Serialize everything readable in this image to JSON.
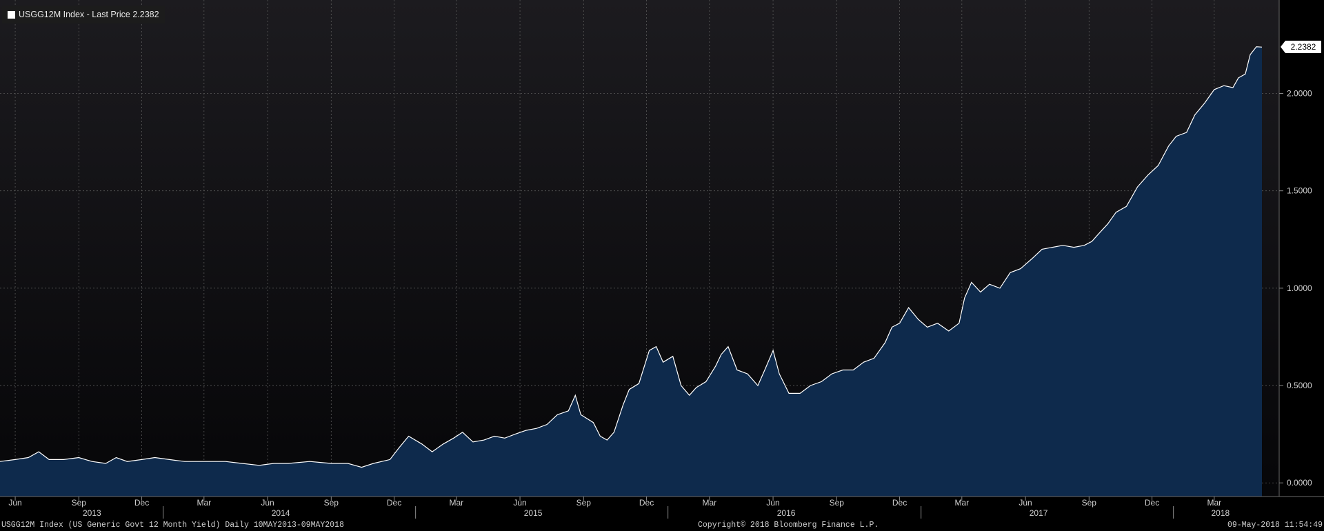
{
  "legend": {
    "label": "USGG12M Index - Last Price 2.2382"
  },
  "last_price_tag": "2.2382",
  "footer": {
    "left": "USGG12M Index (US Generic Govt 12 Month Yield)  Daily 10MAY2013-09MAY2018",
    "center": "Copyright© 2018 Bloomberg Finance L.P.",
    "right": "09-May-2018 11:54:49"
  },
  "colors": {
    "background": "#000000",
    "plot_background_top": "#1c1c20",
    "plot_background_bottom": "#050507",
    "area_fill": "#0e2a4c",
    "line": "#ffffff",
    "grid": "#5a5a5a"
  },
  "chart_data": {
    "type": "area",
    "title": "USGG12M Index - Last Price 2.2382",
    "series_name": "USGG12M Index",
    "xlabel": "",
    "ylabel": "",
    "ylim": [
      -0.07,
      2.48
    ],
    "y_ticks": [
      "0.0000",
      "0.5000",
      "1.0000",
      "1.5000",
      "2.0000"
    ],
    "x_month_ticks": [
      "Jun",
      "Sep",
      "Dec",
      "Mar",
      "Jun",
      "Sep",
      "Dec",
      "Mar",
      "Jun",
      "Sep",
      "Dec",
      "Mar",
      "Jun",
      "Sep",
      "Dec",
      "Mar",
      "Jun",
      "Sep",
      "Dec",
      "Mar"
    ],
    "x_years": [
      "2013",
      "2014",
      "2015",
      "2016",
      "2017",
      "2018"
    ],
    "grid": true,
    "legend_position": "top-left",
    "last_value": 2.2382,
    "points": [
      [
        "2013-05-10",
        0.11
      ],
      [
        "2013-06-01",
        0.12
      ],
      [
        "2013-06-20",
        0.13
      ],
      [
        "2013-07-05",
        0.16
      ],
      [
        "2013-07-20",
        0.12
      ],
      [
        "2013-08-10",
        0.12
      ],
      [
        "2013-09-01",
        0.13
      ],
      [
        "2013-09-20",
        0.11
      ],
      [
        "2013-10-10",
        0.1
      ],
      [
        "2013-10-25",
        0.13
      ],
      [
        "2013-11-10",
        0.11
      ],
      [
        "2013-12-01",
        0.12
      ],
      [
        "2013-12-20",
        0.13
      ],
      [
        "2014-01-10",
        0.12
      ],
      [
        "2014-02-01",
        0.11
      ],
      [
        "2014-03-01",
        0.11
      ],
      [
        "2014-04-01",
        0.11
      ],
      [
        "2014-04-25",
        0.1
      ],
      [
        "2014-05-20",
        0.09
      ],
      [
        "2014-06-10",
        0.1
      ],
      [
        "2014-07-01",
        0.1
      ],
      [
        "2014-08-01",
        0.11
      ],
      [
        "2014-09-01",
        0.1
      ],
      [
        "2014-09-25",
        0.1
      ],
      [
        "2014-10-15",
        0.08
      ],
      [
        "2014-11-01",
        0.1
      ],
      [
        "2014-11-25",
        0.12
      ],
      [
        "2014-12-08",
        0.18
      ],
      [
        "2014-12-22",
        0.24
      ],
      [
        "2015-01-10",
        0.2
      ],
      [
        "2015-01-25",
        0.16
      ],
      [
        "2015-02-10",
        0.2
      ],
      [
        "2015-02-25",
        0.23
      ],
      [
        "2015-03-10",
        0.26
      ],
      [
        "2015-03-25",
        0.21
      ],
      [
        "2015-04-10",
        0.22
      ],
      [
        "2015-04-25",
        0.24
      ],
      [
        "2015-05-10",
        0.23
      ],
      [
        "2015-05-25",
        0.25
      ],
      [
        "2015-06-10",
        0.27
      ],
      [
        "2015-06-25",
        0.28
      ],
      [
        "2015-07-10",
        0.3
      ],
      [
        "2015-07-25",
        0.35
      ],
      [
        "2015-08-10",
        0.37
      ],
      [
        "2015-08-20",
        0.45
      ],
      [
        "2015-08-28",
        0.35
      ],
      [
        "2015-09-15",
        0.31
      ],
      [
        "2015-09-25",
        0.24
      ],
      [
        "2015-10-05",
        0.22
      ],
      [
        "2015-10-15",
        0.26
      ],
      [
        "2015-10-28",
        0.4
      ],
      [
        "2015-11-06",
        0.48
      ],
      [
        "2015-11-20",
        0.51
      ],
      [
        "2015-12-05",
        0.68
      ],
      [
        "2015-12-15",
        0.7
      ],
      [
        "2015-12-25",
        0.62
      ],
      [
        "2016-01-08",
        0.65
      ],
      [
        "2016-01-20",
        0.5
      ],
      [
        "2016-02-01",
        0.45
      ],
      [
        "2016-02-11",
        0.49
      ],
      [
        "2016-02-25",
        0.52
      ],
      [
        "2016-03-10",
        0.6
      ],
      [
        "2016-03-18",
        0.66
      ],
      [
        "2016-03-28",
        0.7
      ],
      [
        "2016-04-10",
        0.58
      ],
      [
        "2016-04-25",
        0.56
      ],
      [
        "2016-05-10",
        0.5
      ],
      [
        "2016-05-20",
        0.58
      ],
      [
        "2016-06-01",
        0.68
      ],
      [
        "2016-06-10",
        0.56
      ],
      [
        "2016-06-24",
        0.46
      ],
      [
        "2016-07-10",
        0.46
      ],
      [
        "2016-07-25",
        0.5
      ],
      [
        "2016-08-10",
        0.52
      ],
      [
        "2016-08-25",
        0.56
      ],
      [
        "2016-09-10",
        0.58
      ],
      [
        "2016-09-25",
        0.58
      ],
      [
        "2016-10-10",
        0.62
      ],
      [
        "2016-10-25",
        0.64
      ],
      [
        "2016-11-10",
        0.72
      ],
      [
        "2016-11-20",
        0.8
      ],
      [
        "2016-12-01",
        0.82
      ],
      [
        "2016-12-14",
        0.9
      ],
      [
        "2016-12-28",
        0.84
      ],
      [
        "2017-01-10",
        0.8
      ],
      [
        "2017-01-25",
        0.82
      ],
      [
        "2017-02-10",
        0.78
      ],
      [
        "2017-02-25",
        0.82
      ],
      [
        "2017-03-05",
        0.95
      ],
      [
        "2017-03-15",
        1.03
      ],
      [
        "2017-03-28",
        0.98
      ],
      [
        "2017-04-10",
        1.02
      ],
      [
        "2017-04-25",
        1.0
      ],
      [
        "2017-05-10",
        1.08
      ],
      [
        "2017-05-25",
        1.1
      ],
      [
        "2017-06-10",
        1.15
      ],
      [
        "2017-06-25",
        1.2
      ],
      [
        "2017-07-10",
        1.21
      ],
      [
        "2017-07-25",
        1.22
      ],
      [
        "2017-08-10",
        1.21
      ],
      [
        "2017-08-25",
        1.22
      ],
      [
        "2017-09-05",
        1.24
      ],
      [
        "2017-09-15",
        1.28
      ],
      [
        "2017-09-28",
        1.33
      ],
      [
        "2017-10-10",
        1.39
      ],
      [
        "2017-10-25",
        1.42
      ],
      [
        "2017-11-10",
        1.52
      ],
      [
        "2017-11-25",
        1.58
      ],
      [
        "2017-12-10",
        1.63
      ],
      [
        "2017-12-25",
        1.73
      ],
      [
        "2018-01-05",
        1.78
      ],
      [
        "2018-01-20",
        1.8
      ],
      [
        "2018-02-01",
        1.89
      ],
      [
        "2018-02-15",
        1.95
      ],
      [
        "2018-03-01",
        2.02
      ],
      [
        "2018-03-15",
        2.04
      ],
      [
        "2018-03-28",
        2.03
      ],
      [
        "2018-04-05",
        2.08
      ],
      [
        "2018-04-15",
        2.1
      ],
      [
        "2018-04-22",
        2.2
      ],
      [
        "2018-05-01",
        2.24
      ],
      [
        "2018-05-09",
        2.2382
      ]
    ]
  }
}
